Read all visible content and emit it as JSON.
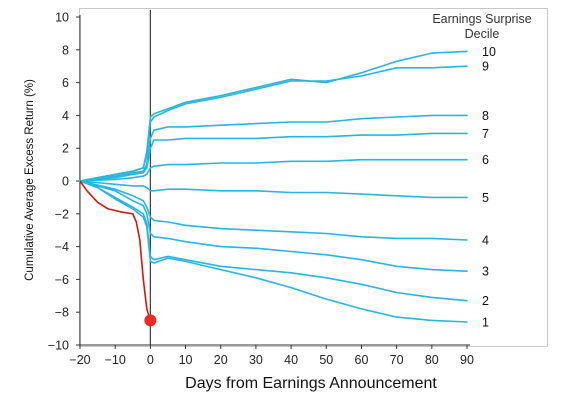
{
  "chart_data": {
    "type": "line",
    "xlabel": "Days from Earnings Announcement",
    "ylabel": "Cumulative Average Excess Return (%)",
    "xlim": [
      -20,
      90
    ],
    "ylim": [
      -10,
      10
    ],
    "xticks": [
      -20,
      -10,
      0,
      10,
      20,
      30,
      40,
      50,
      60,
      70,
      80,
      90
    ],
    "yticks": [
      -10,
      -8,
      -6,
      -4,
      -2,
      0,
      2,
      4,
      6,
      8,
      10
    ],
    "grid": false,
    "legend_title_lines": [
      "Earnings Surprise",
      "Decile"
    ],
    "legend_placement": "right, labels at line ends",
    "colors": {
      "series": "#29b5e0",
      "highlight": "#cc1a12",
      "marker": "#ee2a24",
      "event_line": "#444444"
    },
    "event_line_x": 0,
    "series": [
      {
        "name": "10",
        "x": [
          -20,
          -15,
          -10,
          -5,
          -2,
          -1,
          0,
          1,
          5,
          10,
          20,
          30,
          40,
          50,
          60,
          70,
          80,
          90
        ],
        "y": [
          0,
          0.2,
          0.4,
          0.6,
          0.8,
          1.8,
          3.9,
          4.1,
          4.4,
          4.8,
          5.2,
          5.7,
          6.2,
          6.0,
          6.6,
          7.3,
          7.8,
          7.9
        ]
      },
      {
        "name": "9",
        "x": [
          -20,
          -15,
          -10,
          -5,
          -2,
          -1,
          0,
          1,
          5,
          10,
          20,
          30,
          40,
          50,
          60,
          70,
          80,
          90
        ],
        "y": [
          0,
          0.2,
          0.4,
          0.6,
          0.8,
          1.6,
          3.6,
          3.9,
          4.3,
          4.7,
          5.1,
          5.6,
          6.1,
          6.1,
          6.4,
          6.9,
          6.9,
          7.0
        ]
      },
      {
        "name": "8",
        "x": [
          -20,
          -10,
          -5,
          -2,
          -1,
          0,
          1,
          5,
          10,
          20,
          30,
          40,
          50,
          60,
          70,
          80,
          90
        ],
        "y": [
          0,
          0.3,
          0.5,
          0.6,
          1.0,
          2.6,
          3.1,
          3.3,
          3.3,
          3.4,
          3.5,
          3.6,
          3.6,
          3.8,
          3.9,
          4.0,
          4.0
        ]
      },
      {
        "name": "7",
        "x": [
          -20,
          -10,
          -5,
          -2,
          -1,
          0,
          1,
          5,
          10,
          20,
          30,
          40,
          50,
          60,
          70,
          80,
          90
        ],
        "y": [
          0,
          0.2,
          0.4,
          0.5,
          0.8,
          2.0,
          2.5,
          2.5,
          2.6,
          2.6,
          2.6,
          2.7,
          2.7,
          2.8,
          2.8,
          2.9,
          2.9
        ]
      },
      {
        "name": "6",
        "x": [
          -20,
          -10,
          -5,
          -2,
          -1,
          0,
          1,
          5,
          10,
          20,
          30,
          40,
          50,
          60,
          70,
          80,
          90
        ],
        "y": [
          0,
          0.1,
          0.2,
          0.3,
          0.4,
          0.8,
          0.9,
          1.0,
          1.0,
          1.1,
          1.1,
          1.2,
          1.2,
          1.3,
          1.3,
          1.3,
          1.3
        ]
      },
      {
        "name": "5",
        "x": [
          -20,
          -10,
          -5,
          -2,
          -1,
          0,
          1,
          5,
          10,
          20,
          30,
          40,
          50,
          60,
          70,
          80,
          90
        ],
        "y": [
          0,
          -0.2,
          -0.3,
          -0.3,
          -0.4,
          -0.6,
          -0.6,
          -0.5,
          -0.5,
          -0.6,
          -0.6,
          -0.7,
          -0.7,
          -0.8,
          -0.9,
          -1.0,
          -1.0
        ]
      },
      {
        "name": "4",
        "x": [
          -20,
          -10,
          -5,
          -2,
          -1,
          0,
          1,
          5,
          10,
          20,
          30,
          40,
          50,
          60,
          70,
          80,
          90
        ],
        "y": [
          0,
          -0.5,
          -0.9,
          -1.2,
          -1.6,
          -2.2,
          -2.4,
          -2.5,
          -2.7,
          -2.9,
          -3.0,
          -3.1,
          -3.2,
          -3.4,
          -3.5,
          -3.5,
          -3.6
        ]
      },
      {
        "name": "3",
        "x": [
          -20,
          -10,
          -5,
          -2,
          -1,
          0,
          1,
          5,
          10,
          20,
          30,
          40,
          50,
          60,
          70,
          80,
          90
        ],
        "y": [
          0,
          -0.6,
          -1.2,
          -1.5,
          -2.0,
          -3.2,
          -3.4,
          -3.5,
          -3.7,
          -4.0,
          -4.1,
          -4.3,
          -4.5,
          -4.8,
          -5.2,
          -5.4,
          -5.5
        ]
      },
      {
        "name": "2",
        "x": [
          -20,
          -15,
          -10,
          -5,
          -2,
          -1,
          0,
          1,
          5,
          10,
          20,
          30,
          40,
          50,
          60,
          70,
          80,
          90
        ],
        "y": [
          0,
          -0.4,
          -1.0,
          -1.6,
          -2.0,
          -2.6,
          -4.6,
          -4.8,
          -4.6,
          -4.8,
          -5.2,
          -5.4,
          -5.6,
          -5.9,
          -6.3,
          -6.8,
          -7.1,
          -7.3
        ]
      },
      {
        "name": "1",
        "x": [
          -20,
          -15,
          -10,
          -5,
          -2,
          -1,
          0,
          1,
          5,
          10,
          20,
          30,
          40,
          50,
          60,
          70,
          80,
          90
        ],
        "y": [
          0,
          -0.4,
          -1.1,
          -1.7,
          -2.2,
          -2.8,
          -4.9,
          -5.0,
          -4.7,
          -4.9,
          -5.4,
          -5.9,
          -6.5,
          -7.2,
          -7.8,
          -8.3,
          -8.5,
          -8.6
        ]
      }
    ],
    "highlight": {
      "x": [
        -20,
        -18,
        -15,
        -12,
        -10,
        -8,
        -5,
        -4,
        -3,
        -2,
        -1,
        0
      ],
      "y": [
        0,
        -0.6,
        -1.3,
        -1.7,
        -1.8,
        -1.9,
        -2.0,
        -2.5,
        -3.6,
        -6.0,
        -7.8,
        -8.5
      ],
      "marker": {
        "x": 0,
        "y": -8.5
      }
    }
  }
}
